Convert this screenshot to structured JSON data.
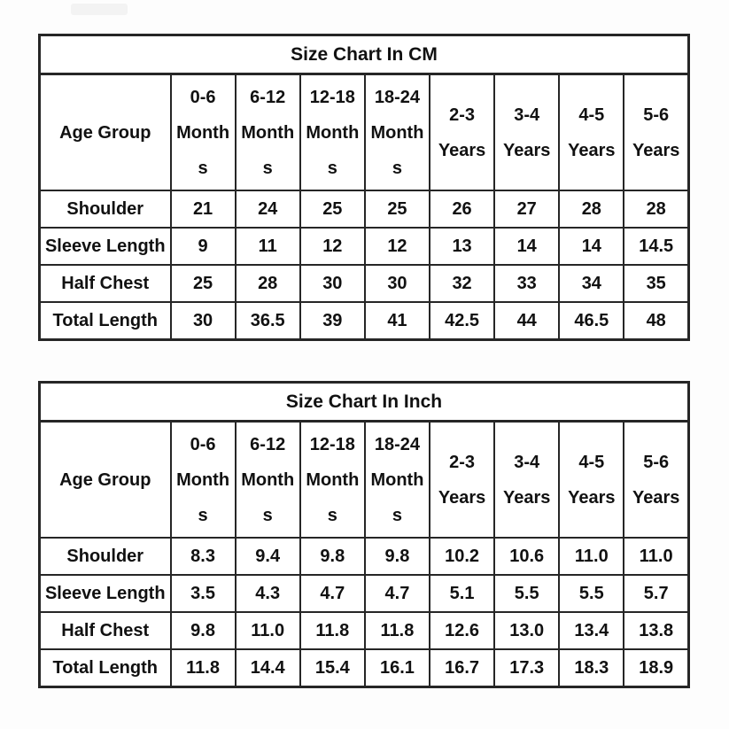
{
  "page": {
    "background": "#fdfdfd",
    "border_color": "#262626",
    "text_color": "#111111",
    "badge_color": "#f3f3f3"
  },
  "tables": [
    {
      "title": "Size Chart In CM",
      "corner_header": "Age Group",
      "column_headers": [
        "0-6\nMonth\ns",
        "6-12\nMonth\ns",
        "12-18\nMonth\ns",
        "18-24\nMonth\ns",
        "2-3\nYears",
        "3-4\nYears",
        "4-5\nYears",
        "5-6\nYears"
      ],
      "rows": [
        {
          "label": "Shoulder",
          "values": [
            "21",
            "24",
            "25",
            "25",
            "26",
            "27",
            "28",
            "28"
          ]
        },
        {
          "label": "Sleeve Length",
          "values": [
            "9",
            "11",
            "12",
            "12",
            "13",
            "14",
            "14",
            "14.5"
          ]
        },
        {
          "label": "Half Chest",
          "values": [
            "25",
            "28",
            "30",
            "30",
            "32",
            "33",
            "34",
            "35"
          ]
        },
        {
          "label": "Total Length",
          "values": [
            "30",
            "36.5",
            "39",
            "41",
            "42.5",
            "44",
            "46.5",
            "48"
          ]
        }
      ]
    },
    {
      "title": "Size Chart In Inch",
      "corner_header": "Age Group",
      "column_headers": [
        "0-6\nMonth\ns",
        "6-12\nMonth\ns",
        "12-18\nMonth\ns",
        "18-24\nMonth\ns",
        "2-3\nYears",
        "3-4\nYears",
        "4-5\nYears",
        "5-6\nYears"
      ],
      "rows": [
        {
          "label": "Shoulder",
          "values": [
            "8.3",
            "9.4",
            "9.8",
            "9.8",
            "10.2",
            "10.6",
            "11.0",
            "11.0"
          ]
        },
        {
          "label": "Sleeve Length",
          "values": [
            "3.5",
            "4.3",
            "4.7",
            "4.7",
            "5.1",
            "5.5",
            "5.5",
            "5.7"
          ]
        },
        {
          "label": "Half Chest",
          "values": [
            "9.8",
            "11.0",
            "11.8",
            "11.8",
            "12.6",
            "13.0",
            "13.4",
            "13.8"
          ]
        },
        {
          "label": "Total Length",
          "values": [
            "11.8",
            "14.4",
            "15.4",
            "16.1",
            "16.7",
            "17.3",
            "18.3",
            "18.9"
          ]
        }
      ]
    }
  ]
}
